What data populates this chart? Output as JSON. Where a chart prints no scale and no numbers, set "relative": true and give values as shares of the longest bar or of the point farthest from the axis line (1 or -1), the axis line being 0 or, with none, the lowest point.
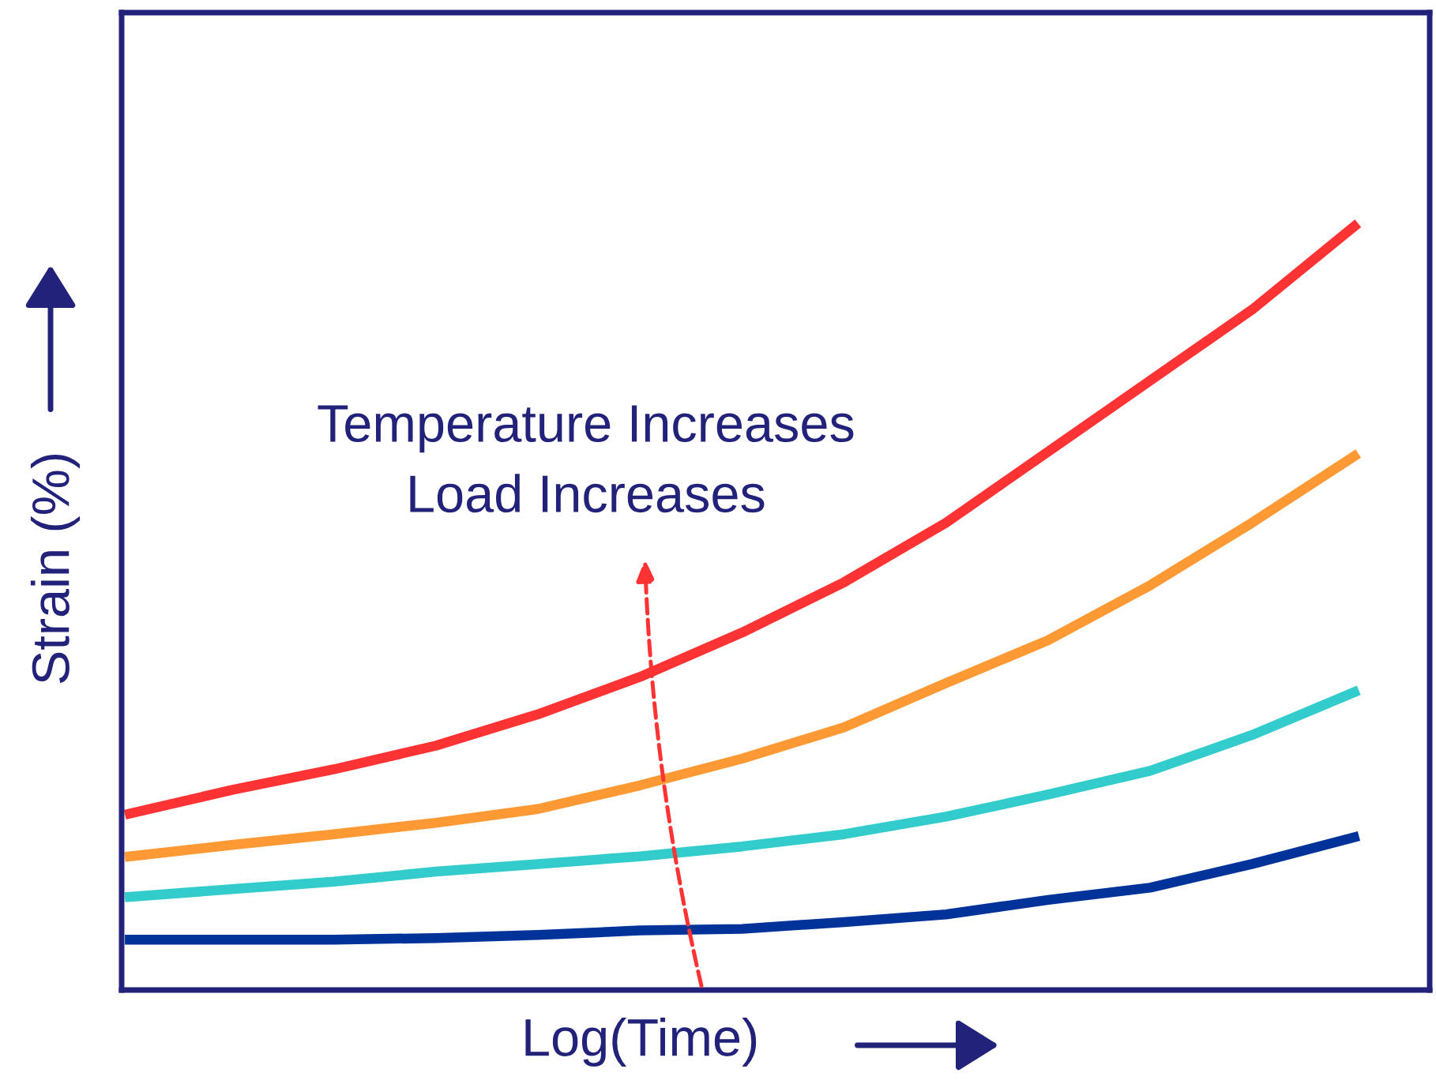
{
  "chart_data": {
    "type": "line",
    "relative": true,
    "xlabel": "Log(Time)",
    "ylabel": "Strain (%)",
    "annotations": [
      "Temperature Increases",
      "Load Increases"
    ],
    "categories": [
      null,
      null,
      null,
      null,
      null,
      null,
      null,
      null,
      null,
      null,
      null,
      null,
      null
    ],
    "series": [
      {
        "color": "#ff3333",
        "values": [
          0.231,
          0.262,
          0.289,
          0.32,
          0.361,
          0.41,
          0.468,
          0.534,
          0.612,
          0.705,
          0.798,
          0.891,
          1
        ]
      },
      {
        "color": "#ff9933",
        "values": [
          0.175,
          0.19,
          0.204,
          0.219,
          0.237,
          0.268,
          0.303,
          0.344,
          0.402,
          0.458,
          0.53,
          0.612,
          0.699
        ]
      },
      {
        "color": "#33cccc",
        "values": [
          0.122,
          0.132,
          0.142,
          0.155,
          0.165,
          0.175,
          0.188,
          0.204,
          0.227,
          0.256,
          0.287,
          0.334,
          0.39
        ]
      },
      {
        "color": "#003399",
        "values": [
          0.066,
          0.066,
          0.066,
          0.068,
          0.072,
          0.078,
          0.08,
          0.089,
          0.099,
          0.118,
          0.134,
          0.165,
          0.2
        ]
      }
    ],
    "grid": false,
    "legend": false,
    "marker": "none",
    "line_style": "solid"
  }
}
